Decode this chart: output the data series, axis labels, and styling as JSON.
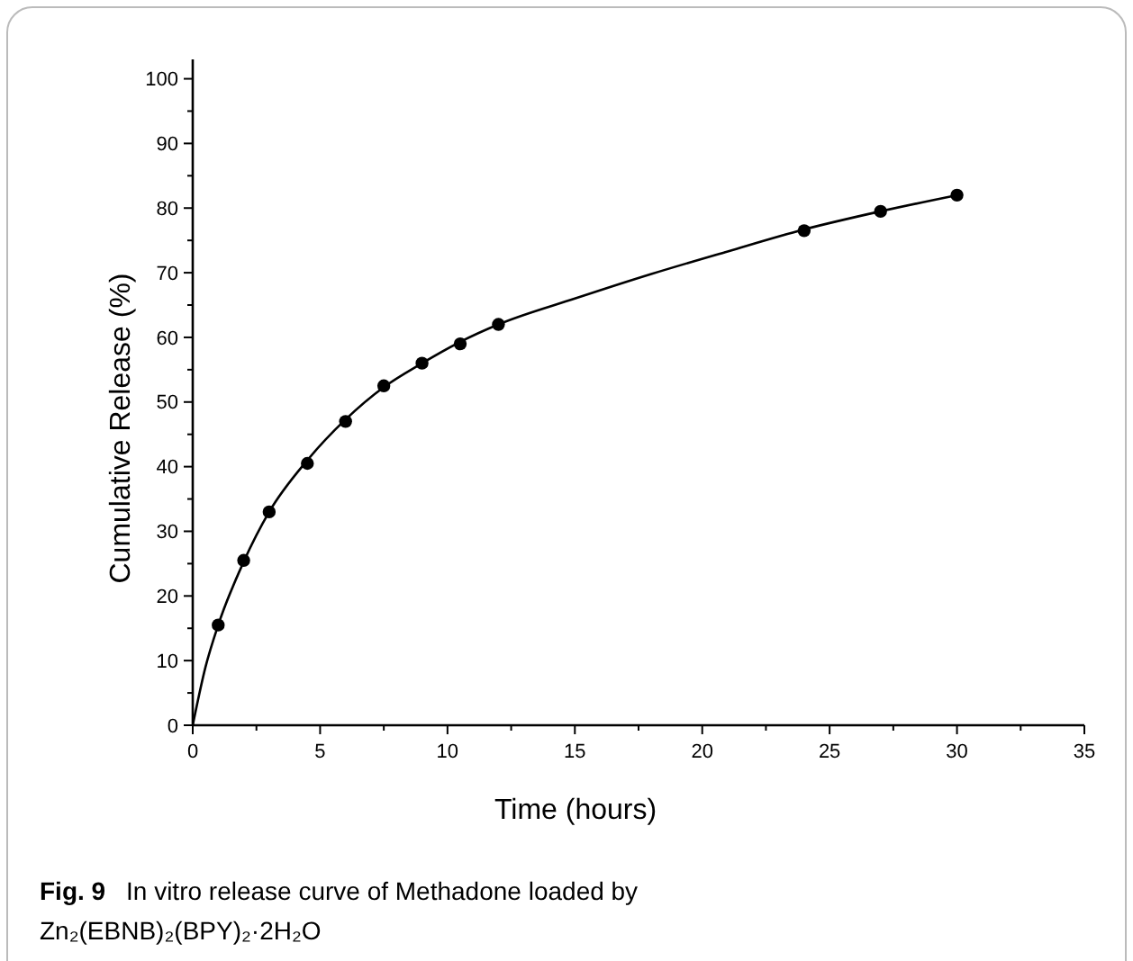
{
  "chart_data": {
    "type": "scatter",
    "xlabel": "Time (hours)",
    "ylabel": "Cumulative Release (%)",
    "xlim": [
      0,
      35
    ],
    "ylim": [
      0,
      103
    ],
    "xticks": [
      0,
      {
        "value": 2.5,
        "label": null
      },
      5,
      {
        "value": 7.5,
        "label": null
      },
      10,
      {
        "value": 12.5,
        "label": null
      },
      15,
      {
        "value": 17.5,
        "label": null
      },
      20,
      {
        "value": 22.5,
        "label": null
      },
      25,
      {
        "value": 27.5,
        "label": null
      },
      30,
      {
        "value": 32.5,
        "label": null
      },
      35
    ],
    "yticks": [
      0,
      {
        "value": 5,
        "label": null
      },
      10,
      {
        "value": 15,
        "label": null
      },
      20,
      {
        "value": 25,
        "label": null
      },
      30,
      {
        "value": 35,
        "label": null
      },
      40,
      {
        "value": 45,
        "label": null
      },
      50,
      {
        "value": 55,
        "label": null
      },
      60,
      {
        "value": 65,
        "label": null
      },
      70,
      {
        "value": 75,
        "label": null
      },
      80,
      {
        "value": 85,
        "label": null
      },
      90,
      {
        "value": 95,
        "label": null
      },
      100
    ],
    "grid": false,
    "series": [
      {
        "type": "line",
        "color": "#000000",
        "marker": "none",
        "line_style": "solid",
        "x": [
          0,
          0.5,
          1,
          2,
          3,
          4.5,
          6,
          7.5,
          9,
          10.5,
          12,
          15,
          18,
          21,
          24,
          27,
          30
        ],
        "values": [
          0,
          9,
          15.5,
          25.3,
          33,
          41,
          47.3,
          52.3,
          56,
          59.3,
          62,
          66,
          69.8,
          73.3,
          76.7,
          79.5,
          82
        ]
      },
      {
        "color": "#000000",
        "marker": "circle",
        "x": [
          1,
          2,
          3,
          4.5,
          6,
          7.5,
          9,
          10.5,
          12,
          24,
          27,
          30
        ],
        "values": [
          15.5,
          25.5,
          33,
          40.5,
          47,
          52.5,
          56,
          59,
          62,
          76.5,
          79.5,
          82
        ]
      }
    ],
    "annotations": [
      "Fig. 9",
      "In vitro release curve of Methadone loaded by Zn₂(EBNB)₂(BPY)₂·2H₂O"
    ]
  }
}
